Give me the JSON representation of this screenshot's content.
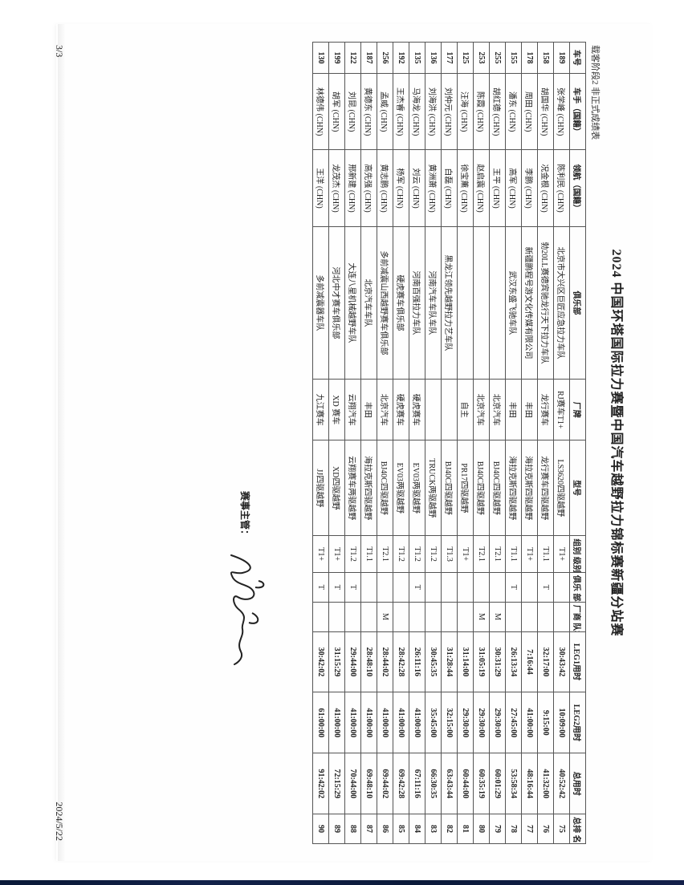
{
  "page": {
    "title": "2024 中国环塔国际拉力赛暨中国汽车越野拉力锦标赛新疆分站赛",
    "subtitle": "载客阶段2 非正式成绩表",
    "sig_label": "赛事主管：",
    "footer_page": "3/3",
    "footer_date": "2024/5/22"
  },
  "table": {
    "headers": {
      "carno": "车号",
      "driver": "车手（国籍）",
      "nav": "领航（国籍）",
      "club": "俱乐部",
      "brand": "厂牌",
      "model": "型号",
      "group": "组别\n级别",
      "clubcup": "俱乐\n部杯",
      "mfgcup": "厂商\n队杯",
      "leg1": "LEG1用时",
      "leg2": "LEG2用时",
      "total": "总用时",
      "rank": "总排\n名"
    },
    "col_widths": {
      "carno": 36,
      "driver": 88,
      "nav": 88,
      "club": 176,
      "brand": 70,
      "model": 110,
      "group": 42,
      "clubcup": 34,
      "mfgcup": 34,
      "leg1": 70,
      "leg2": 70,
      "total": 70,
      "rank": 34
    },
    "rows": [
      {
        "carno": "189",
        "driver": "张学峰 (CHN)",
        "nav": "陈利民 (CHN)",
        "club": "北京市大兴区巨匠应急拉力车队",
        "brand": "RJ赛车T1+",
        "model": "LS3620四驱越野",
        "group": "T1+",
        "clubcup": "",
        "mfgcup": "",
        "leg1": "30:43:42",
        "leg2": "10:09:00",
        "total": "40:52:42",
        "rank": "75"
      },
      {
        "carno": "158",
        "driver": "胡国华 (CHN)",
        "nav": "况金根 (CHN)",
        "club": "勃20LL赛德宾驰龙行天下拉力车队",
        "brand": "龙行赛车",
        "model": "龙行赛车四驱越野",
        "group": "T1.1",
        "clubcup": "T",
        "mfgcup": "",
        "leg1": "32:17:00",
        "leg2": "9:15:00",
        "total": "41:32:00",
        "rank": "76"
      },
      {
        "carno": "178",
        "driver": "周田 (CHN)",
        "nav": "李鹏 (CHN)",
        "club": "新疆鹏程号游文化传媒有限公司",
        "brand": "丰田",
        "model": "海拉克斯四驱越野",
        "group": "T1+",
        "clubcup": "",
        "mfgcup": "",
        "leg1": "7:16:44",
        "leg2": "41:00:00",
        "total": "48:16:44",
        "rank": "77"
      },
      {
        "carno": "155",
        "driver": "潘东 (CHN)",
        "nav": "高军 (CHN)",
        "club": "武汉东盛飞驰车队",
        "brand": "丰田",
        "model": "海拉克斯四驱越野",
        "group": "T1.1",
        "clubcup": "T",
        "mfgcup": "",
        "leg1": "26:13:34",
        "leg2": "27:45:00",
        "total": "53:58:34",
        "rank": "78"
      },
      {
        "carno": "255",
        "driver": "胡红德 (CHN)",
        "nav": "王平 (CHN)",
        "club": "",
        "brand": "北京汽车",
        "model": "BJ40C四驱越野",
        "group": "T2.1",
        "clubcup": "",
        "mfgcup": "M",
        "leg1": "30:31:29",
        "leg2": "29:30:00",
        "total": "60:01:29",
        "rank": "79"
      },
      {
        "carno": "253",
        "driver": "陈霞 (CHN)",
        "nav": "赵启震 (CHN)",
        "club": "",
        "brand": "北京汽车",
        "model": "BJ40C四驱越野",
        "group": "T2.1",
        "clubcup": "",
        "mfgcup": "M",
        "leg1": "31:05:19",
        "leg2": "29:30:00",
        "total": "60:35:19",
        "rank": "80"
      },
      {
        "carno": "125",
        "driver": "汪海 (CHN)",
        "nav": "徐宝薰 (CHN)",
        "club": "",
        "brand": "自主",
        "model": "PR17四驱越野",
        "group": "T1+",
        "clubcup": "",
        "mfgcup": "",
        "leg1": "31:14:00",
        "leg2": "29:30:00",
        "total": "60:44:00",
        "rank": "81"
      },
      {
        "carno": "177",
        "driver": "刘仲元 (CHN)",
        "nav": "白磊 (CHN)",
        "club": "黑龙江领先越野拉力艺车队",
        "brand": "",
        "model": "BJ40C四驱越野",
        "group": "T1.3",
        "clubcup": "",
        "mfgcup": "",
        "leg1": "31:28:44",
        "leg2": "32:15:00",
        "total": "63:43:44",
        "rank": "82"
      },
      {
        "carno": "136",
        "driver": "刘海洪 (CHN)",
        "nav": "黄洲萧 (CHN)",
        "club": "河南汽车车队车队",
        "brand": "",
        "model": "TRUCK两驱越野",
        "group": "T1.2",
        "clubcup": "",
        "mfgcup": "",
        "leg1": "30:45:35",
        "leg2": "35:45:00",
        "total": "66:30:35",
        "rank": "83"
      },
      {
        "carno": "135",
        "driver": "马海龙 (CHN)",
        "nav": "刘云 (CHN)",
        "club": "河南百强拉力车队",
        "brand": "硬虎赛车",
        "model": "EV03两驱越野",
        "group": "T1.2",
        "clubcup": "T",
        "mfgcup": "",
        "leg1": "26:11:16",
        "leg2": "41:00:00",
        "total": "67:11:16",
        "rank": "84"
      },
      {
        "carno": "192",
        "driver": "王杰睿 (CHN)",
        "nav": "杨军 (CHN)",
        "club": "硬虎赛车俱乐部",
        "brand": "硬虎赛车",
        "model": "EV03两驱越野",
        "group": "T1.2",
        "clubcup": "",
        "mfgcup": "",
        "leg1": "28:42:28",
        "leg2": "41:00:00",
        "total": "69:42:28",
        "rank": "85"
      },
      {
        "carno": "256",
        "driver": "孟威 (CHN)",
        "nav": "黄志鹏 (CHN)",
        "club": "多前减震山西越野赛车俱乐部",
        "brand": "北京汽车",
        "model": "BJ40C四驱越野",
        "group": "T2.1",
        "clubcup": "",
        "mfgcup": "M",
        "leg1": "28:44:02",
        "leg2": "41:00:00",
        "total": "69:44:02",
        "rank": "86"
      },
      {
        "carno": "187",
        "driver": "黄德东 (CHN)",
        "nav": "高先强 (CHN)",
        "club": "北京汽车车队",
        "brand": "丰田",
        "model": "海拉克斯四驱越野",
        "group": "T1.1",
        "clubcup": "",
        "mfgcup": "",
        "leg1": "28:48:10",
        "leg2": "41:00:00",
        "total": "69:48:10",
        "rank": "87"
      },
      {
        "carno": "122",
        "driver": "刘昆 (CHN)",
        "nav": "邢新建 (CHN)",
        "club": "大连八星机械越野车队",
        "brand": "云翔汽车",
        "model": "云翔赛车两驱越野",
        "group": "T1.2",
        "clubcup": "T",
        "mfgcup": "",
        "leg1": "29:44:00",
        "leg2": "41:00:00",
        "total": "70:44:00",
        "rank": "88"
      },
      {
        "carno": "199",
        "driver": "胡军 (CHN)",
        "nav": "龙茂杰 (CHN)",
        "club": "河北中才赛车俱乐部",
        "brand": "XD 赛车",
        "model": "XD四驱越野",
        "group": "T1+",
        "clubcup": "T",
        "mfgcup": "",
        "leg1": "31:15:29",
        "leg2": "41:00:00",
        "total": "72:15:29",
        "rank": "89"
      },
      {
        "carno": "130",
        "driver": "林德伟 (CHN)",
        "nav": "王洋 (CHN)",
        "club": "多前减震器车队",
        "brand": "九江赛车",
        "model": "JJ四驱越野",
        "group": "T1+",
        "clubcup": "T",
        "mfgcup": "",
        "leg1": "30:42:02",
        "leg2": "61:00:00",
        "total": "91:42:02",
        "rank": "90"
      }
    ]
  },
  "colors": {
    "text": "#222222",
    "border": "#555555",
    "bg": "#ffffff",
    "blue_edge": "#0b1a3a"
  }
}
